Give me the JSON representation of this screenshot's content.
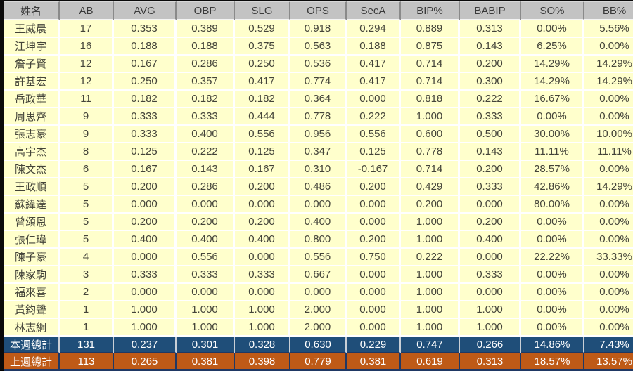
{
  "table": {
    "columns": [
      "姓名",
      "AB",
      "AVG",
      "OBP",
      "SLG",
      "OPS",
      "SecA",
      "BIP%",
      "BABIP",
      "SO%",
      "BB%"
    ],
    "players": [
      {
        "name": "王威晨",
        "values": [
          "17",
          "0.353",
          "0.389",
          "0.529",
          "0.918",
          "0.294",
          "0.889",
          "0.313",
          "0.00%",
          "5.56%"
        ]
      },
      {
        "name": "江坤宇",
        "values": [
          "16",
          "0.188",
          "0.188",
          "0.375",
          "0.563",
          "0.188",
          "0.875",
          "0.143",
          "6.25%",
          "0.00%"
        ]
      },
      {
        "name": "詹子賢",
        "values": [
          "12",
          "0.167",
          "0.286",
          "0.250",
          "0.536",
          "0.417",
          "0.714",
          "0.200",
          "14.29%",
          "14.29%"
        ]
      },
      {
        "name": "許基宏",
        "values": [
          "12",
          "0.250",
          "0.357",
          "0.417",
          "0.774",
          "0.417",
          "0.714",
          "0.300",
          "14.29%",
          "14.29%"
        ]
      },
      {
        "name": "岳政華",
        "values": [
          "11",
          "0.182",
          "0.182",
          "0.182",
          "0.364",
          "0.000",
          "0.818",
          "0.222",
          "16.67%",
          "0.00%"
        ]
      },
      {
        "name": "周思齊",
        "values": [
          "9",
          "0.333",
          "0.333",
          "0.444",
          "0.778",
          "0.222",
          "1.000",
          "0.333",
          "0.00%",
          "0.00%"
        ]
      },
      {
        "name": "張志豪",
        "values": [
          "9",
          "0.333",
          "0.400",
          "0.556",
          "0.956",
          "0.556",
          "0.600",
          "0.500",
          "30.00%",
          "10.00%"
        ]
      },
      {
        "name": "高宇杰",
        "values": [
          "8",
          "0.125",
          "0.222",
          "0.125",
          "0.347",
          "0.125",
          "0.778",
          "0.143",
          "11.11%",
          "11.11%"
        ]
      },
      {
        "name": "陳文杰",
        "values": [
          "6",
          "0.167",
          "0.143",
          "0.167",
          "0.310",
          "-0.167",
          "0.714",
          "0.200",
          "28.57%",
          "0.00%"
        ]
      },
      {
        "name": "王政順",
        "values": [
          "5",
          "0.200",
          "0.286",
          "0.200",
          "0.486",
          "0.200",
          "0.429",
          "0.333",
          "42.86%",
          "14.29%"
        ]
      },
      {
        "name": "蘇緯達",
        "values": [
          "5",
          "0.000",
          "0.000",
          "0.000",
          "0.000",
          "0.000",
          "0.200",
          "0.000",
          "80.00%",
          "0.00%"
        ]
      },
      {
        "name": "曾頌恩",
        "values": [
          "5",
          "0.200",
          "0.200",
          "0.200",
          "0.400",
          "0.000",
          "1.000",
          "0.200",
          "0.00%",
          "0.00%"
        ]
      },
      {
        "name": "張仁瑋",
        "values": [
          "5",
          "0.400",
          "0.400",
          "0.400",
          "0.800",
          "0.200",
          "1.000",
          "0.400",
          "0.00%",
          "0.00%"
        ]
      },
      {
        "name": "陳子豪",
        "values": [
          "4",
          "0.000",
          "0.556",
          "0.000",
          "0.556",
          "0.750",
          "0.222",
          "0.000",
          "22.22%",
          "33.33%"
        ]
      },
      {
        "name": "陳家駒",
        "values": [
          "3",
          "0.333",
          "0.333",
          "0.333",
          "0.667",
          "0.000",
          "1.000",
          "0.333",
          "0.00%",
          "0.00%"
        ]
      },
      {
        "name": "福來喜",
        "values": [
          "2",
          "0.000",
          "0.000",
          "0.000",
          "0.000",
          "0.000",
          "1.000",
          "0.000",
          "0.00%",
          "0.00%"
        ]
      },
      {
        "name": "黃鈞聲",
        "values": [
          "1",
          "1.000",
          "1.000",
          "1.000",
          "2.000",
          "0.000",
          "1.000",
          "1.000",
          "0.00%",
          "0.00%"
        ]
      },
      {
        "name": "林志綱",
        "values": [
          "1",
          "1.000",
          "1.000",
          "1.000",
          "2.000",
          "0.000",
          "1.000",
          "1.000",
          "0.00%",
          "0.00%"
        ]
      }
    ],
    "totals": [
      {
        "label": "本週總計",
        "style": "this-week",
        "values": [
          "131",
          "0.237",
          "0.301",
          "0.328",
          "0.630",
          "0.229",
          "0.747",
          "0.266",
          "14.86%",
          "7.43%"
        ]
      },
      {
        "label": "上週總計",
        "style": "last-week",
        "values": [
          "113",
          "0.265",
          "0.381",
          "0.398",
          "0.779",
          "0.381",
          "0.619",
          "0.313",
          "18.57%",
          "13.57%"
        ]
      }
    ]
  },
  "colors": {
    "row_bg": "#FFFFCC",
    "header_bg": "#C3C3C3",
    "grid": "#FFFFFF",
    "this_week_bg": "#1F4E79",
    "last_week_bg": "#BE5A17",
    "navy_divider": "#1F3864",
    "frame_bg": "#0A0A0A"
  }
}
